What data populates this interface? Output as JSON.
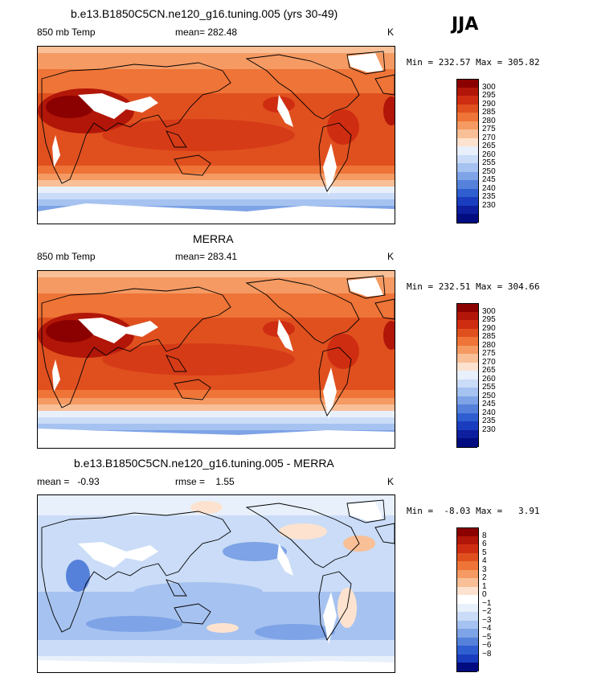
{
  "season": "JJA",
  "colors": {
    "temp_scale": [
      "#8b0000",
      "#b11608",
      "#cf2d12",
      "#e0501f",
      "#ee7437",
      "#f59a63",
      "#f9bf96",
      "#fde3cf",
      "#e8f0fb",
      "#cadcf7",
      "#a6c2f0",
      "#7ea3e6",
      "#5581db",
      "#2f5ed0",
      "#1a3dbf",
      "#0d1f9e",
      "#000c80"
    ],
    "diff_scale": [
      "#8b0000",
      "#b11608",
      "#cf2d12",
      "#e0501f",
      "#ee7437",
      "#f59a63",
      "#f9bf96",
      "#fde3cf",
      "#ffffff",
      "#e8f0fb",
      "#cadcf7",
      "#a6c2f0",
      "#7ea3e6",
      "#5581db",
      "#2f5ed0",
      "#1a3dbf",
      "#000c80"
    ]
  },
  "panels": [
    {
      "title": "b.e13.B1850C5CN.ne120_g16.tuning.005 (yrs 30-49)",
      "left_label": "850 mb Temp",
      "center_label": "mean= 282.48",
      "units": "K",
      "minmax": "Min = 232.57 Max = 305.82",
      "legend_labels": [
        "300",
        "295",
        "290",
        "285",
        "280",
        "275",
        "270",
        "265",
        "260",
        "255",
        "250",
        "245",
        "240",
        "235",
        "230"
      ]
    },
    {
      "title": "MERRA",
      "left_label": "850 mb Temp",
      "center_label": "mean= 283.41",
      "units": "K",
      "minmax": "Min = 232.51 Max = 304.66",
      "legend_labels": [
        "300",
        "295",
        "290",
        "285",
        "280",
        "275",
        "270",
        "265",
        "260",
        "255",
        "250",
        "245",
        "240",
        "235",
        "230"
      ]
    },
    {
      "title": "b.e13.B1850C5CN.ne120_g16.tuning.005 - MERRA",
      "left_label": "mean =   -0.93",
      "center_label": "rmse =    1.55",
      "units": "K",
      "minmax": "Min =  -8.03 Max =   3.91",
      "legend_labels": [
        "8",
        "6",
        "5",
        "4",
        "3",
        "2",
        "1",
        "0",
        "−1",
        "−2",
        "−3",
        "−4",
        "−5",
        "−6",
        "−8"
      ]
    }
  ]
}
